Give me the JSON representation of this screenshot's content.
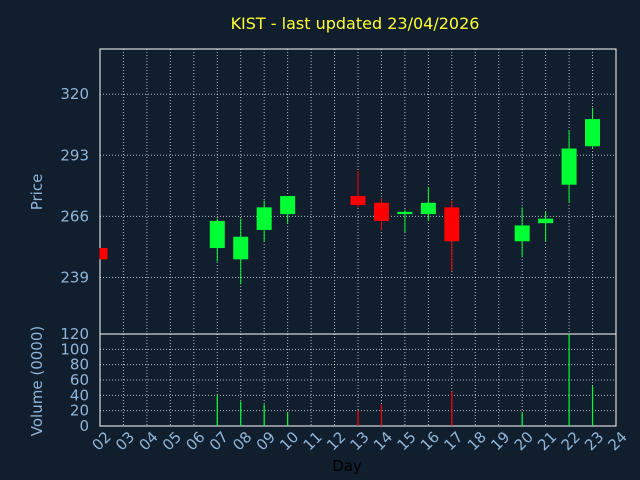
{
  "chart_data": {
    "type": "candlestick",
    "title": "KIST - last updated 23/04/2026",
    "xlabel": "Day",
    "ylabel": "Price",
    "volume_label": "Volume (0000)",
    "x_ticks": [
      "02",
      "03",
      "04",
      "05",
      "06",
      "07",
      "08",
      "09",
      "10",
      "11",
      "12",
      "13",
      "14",
      "15",
      "16",
      "17",
      "18",
      "19",
      "20",
      "21",
      "22",
      "23",
      "24"
    ],
    "price_ticks": [
      239,
      266,
      293,
      320
    ],
    "price_range": [
      214,
      340
    ],
    "volume_ticks": [
      0,
      20,
      40,
      60,
      80,
      100,
      120
    ],
    "volume_range": [
      0,
      120
    ],
    "grid": true,
    "colors": {
      "background": "#111e2e",
      "grid": "#ffffff",
      "text": "#8fb5d8",
      "title": "#ffff33",
      "up": "#00ff33",
      "down": "#ff0000"
    },
    "candles": [
      {
        "day": "02",
        "open": 252,
        "close": 247,
        "high": 252,
        "low": 247
      },
      {
        "day": "07",
        "open": 252,
        "close": 264,
        "high": 265,
        "low": 246
      },
      {
        "day": "08",
        "open": 247,
        "close": 257,
        "high": 265,
        "low": 236
      },
      {
        "day": "09",
        "open": 260,
        "close": 270,
        "high": 273,
        "low": 255
      },
      {
        "day": "10",
        "open": 267,
        "close": 275,
        "high": 275,
        "low": 263
      },
      {
        "day": "13",
        "open": 275,
        "close": 271,
        "high": 286,
        "low": 270
      },
      {
        "day": "14",
        "open": 272,
        "close": 264,
        "high": 274,
        "low": 260
      },
      {
        "day": "15",
        "open": 267,
        "close": 268,
        "high": 269,
        "low": 259
      },
      {
        "day": "16",
        "open": 267,
        "close": 272,
        "high": 279,
        "low": 264
      },
      {
        "day": "17",
        "open": 270,
        "close": 255,
        "high": 273,
        "low": 242
      },
      {
        "day": "20",
        "open": 255,
        "close": 262,
        "high": 270,
        "low": 248
      },
      {
        "day": "21",
        "open": 263,
        "close": 265,
        "high": 268,
        "low": 255
      },
      {
        "day": "22",
        "open": 280,
        "close": 296,
        "high": 304,
        "low": 272
      },
      {
        "day": "23",
        "open": 297,
        "close": 309,
        "high": 314,
        "low": 296
      }
    ],
    "volume": [
      {
        "day": "07",
        "value": 40,
        "direction": "up"
      },
      {
        "day": "08",
        "value": 32,
        "direction": "up"
      },
      {
        "day": "09",
        "value": 28,
        "direction": "up"
      },
      {
        "day": "10",
        "value": 18,
        "direction": "up"
      },
      {
        "day": "13",
        "value": 20,
        "direction": "down"
      },
      {
        "day": "14",
        "value": 28,
        "direction": "down"
      },
      {
        "day": "17",
        "value": 45,
        "direction": "down"
      },
      {
        "day": "20",
        "value": 18,
        "direction": "up"
      },
      {
        "day": "22",
        "value": 120,
        "direction": "up"
      },
      {
        "day": "23",
        "value": 52,
        "direction": "up"
      }
    ]
  }
}
